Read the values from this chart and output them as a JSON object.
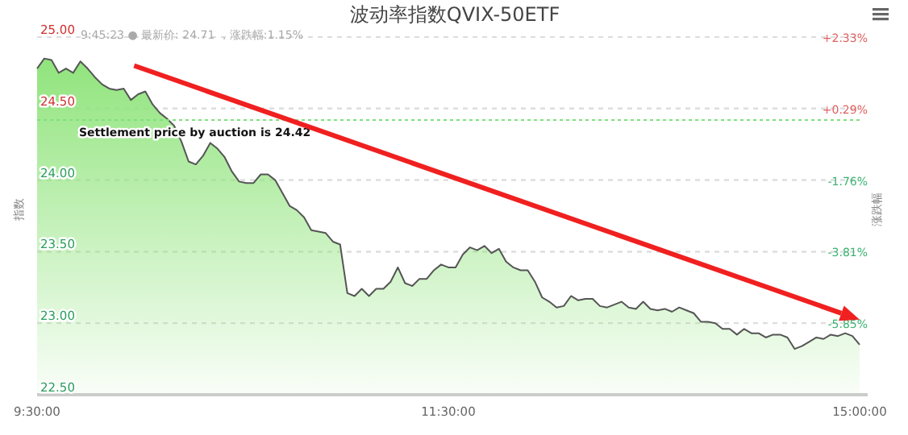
{
  "chart_data": {
    "type": "area",
    "title": "波动率指数QVIX-50ETF",
    "ylabel": "指数",
    "y2label": "涨跌幅",
    "categories": [
      "9:30:00",
      null,
      null,
      null,
      null,
      null,
      null,
      null,
      null,
      null,
      null,
      null,
      null,
      null,
      null,
      null,
      null,
      null,
      null,
      null,
      null,
      null,
      null,
      null,
      null,
      null,
      null,
      null,
      null,
      null,
      null,
      null,
      null,
      null,
      null,
      null,
      null,
      null,
      null,
      null,
      null,
      null,
      null,
      null,
      null,
      null,
      null,
      null,
      null,
      null,
      null,
      null,
      null,
      null,
      null,
      null,
      null,
      "11:30:00",
      null,
      null,
      null,
      null,
      null,
      null,
      null,
      null,
      null,
      null,
      null,
      null,
      null,
      null,
      null,
      null,
      null,
      null,
      null,
      null,
      null,
      null,
      null,
      null,
      null,
      null,
      null,
      null,
      null,
      null,
      null,
      null,
      null,
      null,
      null,
      null,
      null,
      null,
      null,
      null,
      null,
      null,
      null,
      null,
      null,
      null,
      null,
      null,
      null,
      null,
      null,
      null,
      null,
      null,
      null,
      null,
      "15:00:00"
    ],
    "series": [
      {
        "color": "#90e47c",
        "values": [
          24.78,
          24.85,
          24.84,
          24.75,
          24.78,
          24.75,
          24.83,
          24.78,
          24.72,
          24.67,
          24.64,
          24.63,
          24.64,
          24.56,
          24.6,
          24.62,
          24.53,
          24.47,
          24.43,
          24.38,
          24.27,
          24.13,
          24.11,
          24.17,
          24.26,
          24.22,
          24.16,
          24.06,
          23.99,
          23.98,
          23.98,
          24.04,
          24.04,
          24.0,
          23.91,
          23.82,
          23.79,
          23.74,
          23.65,
          23.64,
          23.63,
          23.57,
          23.55,
          23.21,
          23.19,
          23.24,
          23.19,
          23.24,
          23.24,
          23.29,
          23.39,
          23.28,
          23.26,
          23.31,
          23.31,
          23.37,
          23.41,
          23.39,
          23.39,
          23.48,
          23.53,
          23.51,
          23.54,
          23.49,
          23.52,
          23.43,
          23.39,
          23.37,
          23.37,
          23.29,
          23.18,
          23.15,
          23.11,
          23.12,
          23.19,
          23.16,
          23.17,
          23.17,
          23.12,
          23.11,
          23.13,
          23.15,
          23.11,
          23.1,
          23.15,
          23.1,
          23.09,
          23.1,
          23.08,
          23.11,
          23.09,
          23.07,
          23.01,
          23.01,
          23.0,
          22.96,
          22.96,
          22.92,
          22.96,
          22.93,
          22.93,
          22.9,
          22.92,
          22.92,
          22.9,
          22.82,
          22.84,
          22.87,
          22.9,
          22.89,
          22.92,
          22.91,
          22.93,
          22.91,
          22.85
        ]
      }
    ],
    "ylim": [
      22.5,
      25
    ],
    "yticks": [
      {
        "value": 22.5,
        "label": "22.50"
      },
      {
        "value": 23,
        "label": "23.00"
      },
      {
        "value": 23.5,
        "label": "23.50"
      },
      {
        "value": 24,
        "label": "24.00"
      },
      {
        "value": 24.5,
        "label": "24.50"
      },
      {
        "value": 25,
        "label": "25.00"
      }
    ],
    "y2lim": [
      -7.9,
      2.33
    ],
    "y2ticks": [
      {
        "value": -5.85,
        "label": "-5.85%"
      },
      {
        "value": -3.81,
        "label": "-3.81%"
      },
      {
        "value": -1.76,
        "label": "-1.76%"
      },
      {
        "value": 0.29,
        "label": "+0.29%"
      },
      {
        "value": 2.33,
        "label": "+2.33%"
      }
    ],
    "ref_lines": [
      {
        "axis": "y",
        "value": 24.42,
        "label": "Settlement price by auction is 24.42",
        "color": "#7ee07e",
        "line_style": "dotted"
      }
    ],
    "annotations": [
      "9:45:23 ● 最新价: 24.71 ，涨跌幅:1.15%"
    ],
    "grid": "y",
    "marker": "none",
    "line_style": "solid"
  }
}
